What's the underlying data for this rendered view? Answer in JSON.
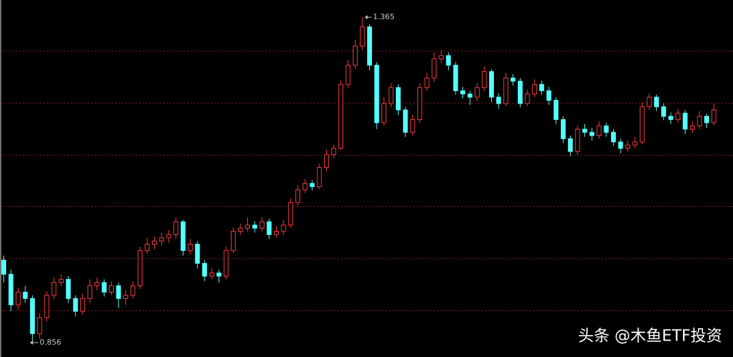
{
  "chart_data": {
    "type": "candlestick",
    "up_color": "#ff3b3b",
    "down_color": "#54ffff",
    "grid_color": "#8a1c1c",
    "ylim": [
      0.8335,
      1.392
    ],
    "yticks": [
      0.906,
      0.988,
      1.069,
      1.15,
      1.231,
      1.3125
    ],
    "grid": true,
    "max_label": 1.365,
    "min_label": 0.856,
    "watermark": "头条 @木鱼ETF投资",
    "open": [
      0.985,
      0.963,
      0.915,
      0.935,
      0.925,
      0.87,
      0.895,
      0.93,
      0.95,
      0.955,
      0.925,
      0.905,
      0.925,
      0.945,
      0.95,
      0.935,
      0.945,
      0.925,
      0.93,
      0.945,
      1.0,
      1.01,
      1.015,
      1.02,
      1.025,
      1.045,
      1.0,
      1.01,
      0.98,
      0.96,
      0.965,
      0.96,
      1.0,
      1.03,
      1.035,
      1.04,
      1.035,
      1.045,
      1.025,
      1.03,
      1.04,
      1.075,
      1.095,
      1.105,
      1.1,
      1.13,
      1.15,
      1.16,
      1.26,
      1.29,
      1.32,
      1.35,
      1.29,
      1.2,
      1.23,
      1.255,
      1.22,
      1.185,
      1.205,
      1.255,
      1.27,
      1.3,
      1.305,
      1.29,
      1.25,
      1.245,
      1.24,
      1.255,
      1.28,
      1.24,
      1.23,
      1.27,
      1.265,
      1.23,
      1.245,
      1.26,
      1.25,
      1.235,
      1.205,
      1.175,
      1.155,
      1.19,
      1.185,
      1.18,
      1.195,
      1.185,
      1.17,
      1.16,
      1.165,
      1.17,
      1.225,
      1.24,
      1.225,
      1.21,
      1.205,
      1.215,
      1.19,
      1.195,
      1.21,
      1.2
    ],
    "high": [
      0.992,
      0.97,
      0.942,
      0.945,
      0.93,
      0.902,
      0.936,
      0.958,
      0.963,
      0.96,
      0.93,
      0.932,
      0.955,
      0.958,
      0.955,
      0.952,
      0.95,
      0.938,
      0.952,
      1.006,
      1.02,
      1.022,
      1.028,
      1.032,
      1.052,
      1.048,
      1.018,
      1.015,
      0.985,
      0.972,
      0.97,
      1.006,
      1.036,
      1.042,
      1.052,
      1.046,
      1.052,
      1.05,
      1.038,
      1.048,
      1.082,
      1.102,
      1.112,
      1.11,
      1.136,
      1.158,
      1.166,
      1.266,
      1.298,
      1.33,
      1.365,
      1.354,
      1.295,
      1.24,
      1.262,
      1.26,
      1.225,
      1.212,
      1.262,
      1.278,
      1.31,
      1.314,
      1.31,
      1.295,
      1.256,
      1.25,
      1.262,
      1.288,
      1.284,
      1.246,
      1.278,
      1.276,
      1.27,
      1.252,
      1.268,
      1.266,
      1.256,
      1.24,
      1.21,
      1.18,
      1.196,
      1.198,
      1.192,
      1.202,
      1.2,
      1.19,
      1.175,
      1.172,
      1.178,
      1.232,
      1.246,
      1.244,
      1.23,
      1.216,
      1.222,
      1.22,
      1.202,
      1.218,
      1.214,
      1.23
    ],
    "low": [
      0.95,
      0.905,
      0.908,
      0.918,
      0.856,
      0.862,
      0.889,
      0.924,
      0.944,
      0.918,
      0.897,
      0.9,
      0.918,
      0.938,
      0.928,
      0.93,
      0.91,
      0.915,
      0.925,
      0.94,
      0.995,
      1.002,
      1.008,
      1.012,
      1.018,
      0.992,
      0.994,
      0.972,
      0.952,
      0.955,
      0.95,
      0.955,
      0.996,
      1.024,
      1.03,
      1.028,
      1.03,
      1.018,
      1.02,
      1.024,
      1.036,
      1.07,
      1.09,
      1.094,
      1.096,
      1.124,
      1.144,
      1.158,
      1.254,
      1.284,
      1.314,
      1.282,
      1.19,
      1.195,
      1.224,
      1.212,
      1.178,
      1.18,
      1.2,
      1.25,
      1.264,
      1.294,
      1.282,
      1.244,
      1.238,
      1.228,
      1.234,
      1.25,
      1.232,
      1.222,
      1.226,
      1.258,
      1.224,
      1.226,
      1.24,
      1.244,
      1.228,
      1.198,
      1.168,
      1.148,
      1.15,
      1.178,
      1.172,
      1.175,
      1.178,
      1.164,
      1.152,
      1.155,
      1.16,
      1.166,
      1.22,
      1.218,
      1.204,
      1.198,
      1.2,
      1.182,
      1.184,
      1.19,
      1.192,
      1.196
    ],
    "close": [
      0.963,
      0.915,
      0.935,
      0.925,
      0.87,
      0.895,
      0.93,
      0.95,
      0.955,
      0.925,
      0.905,
      0.925,
      0.945,
      0.95,
      0.935,
      0.945,
      0.925,
      0.93,
      0.945,
      1.0,
      1.01,
      1.015,
      1.02,
      1.025,
      1.045,
      1.0,
      1.01,
      0.98,
      0.96,
      0.965,
      0.96,
      1.0,
      1.03,
      1.035,
      1.04,
      1.035,
      1.045,
      1.025,
      1.03,
      1.04,
      1.075,
      1.095,
      1.105,
      1.1,
      1.13,
      1.15,
      1.16,
      1.26,
      1.29,
      1.32,
      1.35,
      1.29,
      1.2,
      1.23,
      1.255,
      1.22,
      1.185,
      1.205,
      1.255,
      1.27,
      1.3,
      1.305,
      1.29,
      1.25,
      1.245,
      1.24,
      1.255,
      1.28,
      1.24,
      1.23,
      1.27,
      1.265,
      1.23,
      1.245,
      1.26,
      1.25,
      1.235,
      1.205,
      1.175,
      1.155,
      1.19,
      1.185,
      1.18,
      1.195,
      1.185,
      1.17,
      1.16,
      1.165,
      1.17,
      1.225,
      1.24,
      1.225,
      1.21,
      1.205,
      1.215,
      1.19,
      1.195,
      1.21,
      1.2,
      1.22
    ]
  }
}
